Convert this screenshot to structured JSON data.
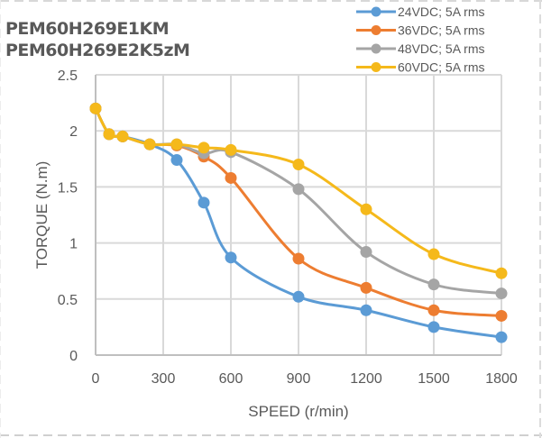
{
  "titles": [
    "PEM60H269E1KM",
    "PEM60H269E2K5zM"
  ],
  "chart_data": {
    "type": "line",
    "title": "PEM60H269E1KM / PEM60H269E2K5zM",
    "xlabel": "SPEED (r/min)",
    "ylabel": "TORQUE (N.m)",
    "xlim": [
      0,
      1800
    ],
    "ylim": [
      0,
      2.5
    ],
    "xticks": [
      0,
      300,
      600,
      900,
      1200,
      1500,
      1800
    ],
    "yticks": [
      0,
      0.5,
      1,
      1.5,
      2,
      2.5
    ],
    "xtick_labels": [
      "0",
      "300",
      "600",
      "900",
      "1200",
      "1500",
      "1800"
    ],
    "ytick_labels": [
      "0",
      "0.5",
      "1",
      "1.5",
      "2",
      "2.5"
    ],
    "grid": true,
    "legend_position": "top-right",
    "smooth": true,
    "x": [
      0,
      60,
      120,
      240,
      360,
      480,
      600,
      900,
      1200,
      1500,
      1800
    ],
    "series": [
      {
        "name": "24VDC; 5A rms",
        "color": "#5b9bd5",
        "values": [
          2.2,
          1.97,
          1.95,
          1.88,
          1.74,
          1.36,
          0.87,
          0.52,
          0.4,
          0.25,
          0.16
        ]
      },
      {
        "name": "36VDC; 5A rms",
        "color": "#ed7d31",
        "values": [
          2.2,
          1.97,
          1.95,
          1.88,
          1.87,
          1.77,
          1.58,
          0.86,
          0.6,
          0.4,
          0.35
        ]
      },
      {
        "name": "48VDC; 5A rms",
        "color": "#a5a5a5",
        "values": [
          2.2,
          1.97,
          1.95,
          1.88,
          1.88,
          1.8,
          1.81,
          1.48,
          0.92,
          0.63,
          0.55
        ]
      },
      {
        "name": "60VDC; 5A rms",
        "color": "#f5b91b",
        "values": [
          2.2,
          1.97,
          1.95,
          1.88,
          1.88,
          1.85,
          1.83,
          1.7,
          1.3,
          0.9,
          0.73
        ]
      }
    ]
  }
}
